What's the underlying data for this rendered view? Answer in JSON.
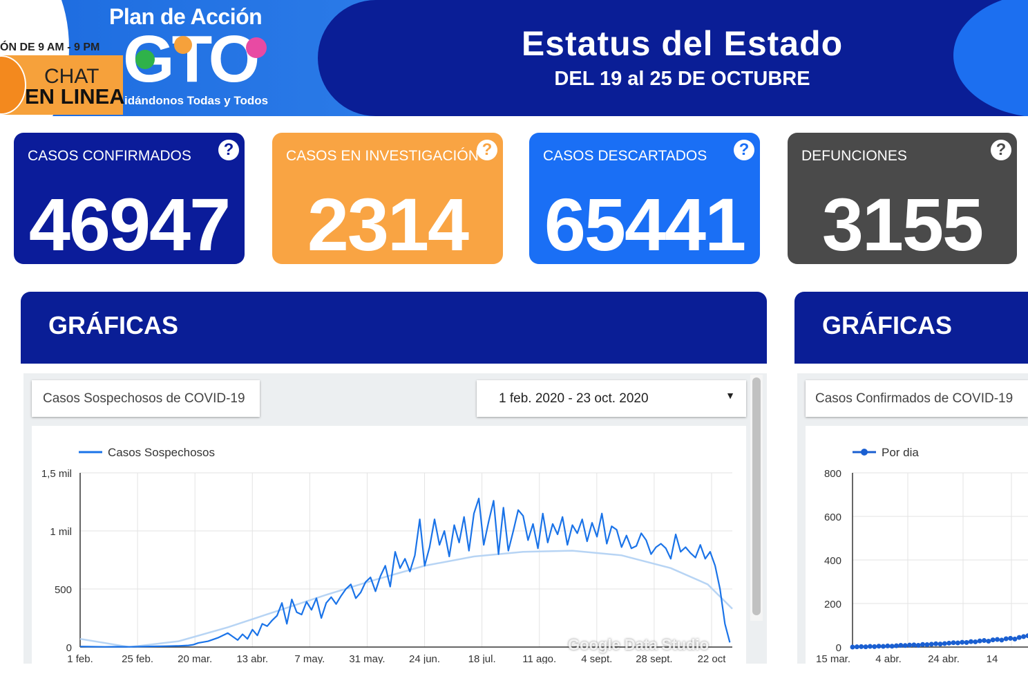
{
  "header": {
    "logo_line1": "Plan de Acción",
    "logo_main": "GTO",
    "logo_tagline": "idándonos Todas y Todos",
    "chat_hours": "ÓN DE 9 AM - 9 PM",
    "chat_line1": "CHAT",
    "chat_line2": "EN LINEA",
    "title": "Estatus del Estado",
    "subtitle": "DEL 19 al 25 DE OCTUBRE"
  },
  "cards": [
    {
      "label": "CASOS CONFIRMADOS",
      "value": "46947",
      "color": "#0b1c9a",
      "help": "?"
    },
    {
      "label": "CASOS EN INVESTIGACIÓN",
      "value": "2314",
      "color": "#f9a443",
      "help": "?"
    },
    {
      "label": "CASOS DESCARTADOS",
      "value": "65441",
      "color": "#1a6ff5",
      "help": "?"
    },
    {
      "label": "DEFUNCIONES",
      "value": "3155",
      "color": "#4a4a4a",
      "help": "?"
    }
  ],
  "sections": [
    {
      "title": "GRÁFICAS"
    },
    {
      "title": "GRÁFICAS"
    }
  ],
  "left_panel": {
    "chart_select": "Casos Sospechosos de COVID-19",
    "date_range": "1 feb. 2020 - 23 oct. 2020",
    "watermark": "Google Data Studio"
  },
  "right_panel": {
    "chart_select": "Casos Confirmados de COVID-19"
  },
  "chart_data": [
    {
      "type": "line",
      "legend": [
        "Casos Sospechosos"
      ],
      "x_ticks": [
        "1 feb.",
        "25 feb.",
        "20 mar.",
        "13 abr.",
        "7 may.",
        "31 may.",
        "24 jun.",
        "18 jul.",
        "11 ago.",
        "4 sept.",
        "28 sept.",
        "22 oct"
      ],
      "y_ticks": [
        "0",
        "500",
        "1 mil",
        "1,5 mil"
      ],
      "ylim": [
        0,
        1500
      ],
      "xlim": [
        0,
        265
      ],
      "series_color": "#1a73e8",
      "trend_color": "#b7d4f4",
      "series": [
        {
          "name": "Casos Sospechosos",
          "x": [
            0,
            5,
            10,
            15,
            20,
            25,
            30,
            35,
            40,
            44,
            46,
            48,
            52,
            56,
            60,
            62,
            64,
            66,
            68,
            70,
            72,
            74,
            76,
            78,
            80,
            82,
            84,
            86,
            88,
            90,
            92,
            94,
            96,
            98,
            100,
            102,
            104,
            106,
            108,
            110,
            112,
            114,
            116,
            118,
            120,
            122,
            124,
            126,
            128,
            130,
            132,
            134,
            136,
            138,
            140,
            142,
            144,
            146,
            148,
            150,
            152,
            154,
            156,
            158,
            160,
            162,
            164,
            166,
            168,
            170,
            172,
            174,
            176,
            178,
            180,
            182,
            184,
            186,
            188,
            190,
            192,
            194,
            196,
            198,
            200,
            202,
            204,
            206,
            208,
            210,
            212,
            214,
            216,
            218,
            220,
            222,
            224,
            226,
            228,
            230,
            232,
            234,
            236,
            238,
            240,
            242,
            244,
            246,
            248,
            250,
            252,
            254,
            256,
            258,
            260,
            262,
            264
          ],
          "y": [
            5,
            3,
            2,
            3,
            2,
            4,
            6,
            8,
            10,
            14,
            20,
            35,
            50,
            80,
            120,
            90,
            60,
            110,
            70,
            150,
            100,
            200,
            180,
            230,
            270,
            380,
            200,
            410,
            300,
            280,
            390,
            320,
            420,
            250,
            380,
            430,
            370,
            440,
            500,
            540,
            420,
            470,
            560,
            600,
            480,
            610,
            700,
            520,
            820,
            680,
            760,
            650,
            790,
            1100,
            700,
            860,
            1100,
            880,
            1000,
            780,
            1050,
            900,
            1120,
            830,
            1150,
            1280,
            880,
            1080,
            1260,
            800,
            1200,
            830,
            1000,
            1180,
            1130,
            920,
            1060,
            850,
            1150,
            900,
            1060,
            970,
            1120,
            880,
            1050,
            980,
            1100,
            910,
            1070,
            950,
            1150,
            890,
            1040,
            1010,
            860,
            960,
            850,
            870,
            980,
            920,
            800,
            860,
            890,
            850,
            760,
            970,
            820,
            860,
            810,
            770,
            880,
            760,
            820,
            700,
            500,
            200,
            40
          ]
        },
        {
          "name": "trend",
          "x": [
            0,
            20,
            40,
            60,
            80,
            100,
            120,
            140,
            160,
            180,
            200,
            220,
            240,
            255,
            265
          ],
          "y": [
            70,
            0,
            50,
            170,
            310,
            450,
            580,
            700,
            780,
            820,
            830,
            790,
            680,
            540,
            330
          ]
        }
      ]
    },
    {
      "type": "line",
      "legend": [
        "Por dia"
      ],
      "x_ticks": [
        "15 mar.",
        "4 abr.",
        "24 abr.",
        "14"
      ],
      "y_ticks": [
        "0",
        "200",
        "400",
        "600",
        "800"
      ],
      "ylim": [
        0,
        800
      ],
      "series_color": "#1a5fd1",
      "series": [
        {
          "name": "Por dia",
          "x": [
            0,
            3,
            6,
            9,
            12,
            15,
            18,
            21,
            24,
            27,
            30,
            33,
            36,
            39,
            42,
            45,
            48,
            51,
            54,
            57,
            60,
            63,
            66,
            69,
            72,
            75,
            78,
            81,
            84,
            87,
            90,
            93,
            96,
            99,
            102,
            105,
            108,
            111,
            114,
            117,
            120
          ],
          "y": [
            0,
            1,
            2,
            1,
            3,
            2,
            4,
            3,
            5,
            4,
            6,
            8,
            7,
            9,
            10,
            8,
            12,
            11,
            13,
            15,
            14,
            16,
            18,
            20,
            19,
            22,
            21,
            25,
            24,
            28,
            30,
            27,
            33,
            35,
            32,
            38,
            40,
            37,
            44,
            48,
            52
          ]
        }
      ]
    }
  ]
}
